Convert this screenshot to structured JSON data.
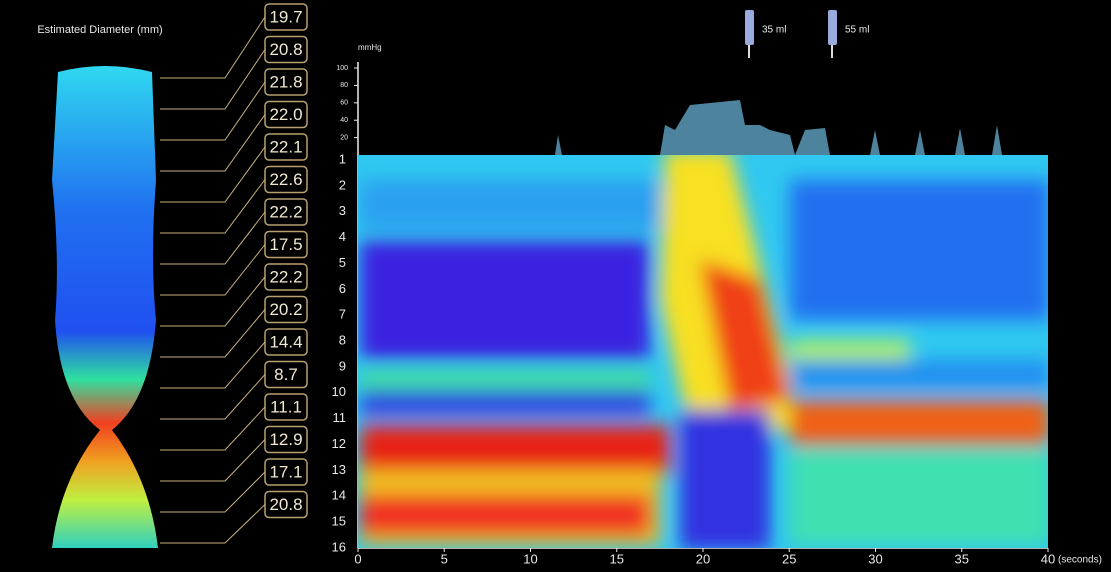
{
  "diameter_panel": {
    "title": "Estimated Diameter (mm)",
    "labels": [
      "19.7",
      "20.8",
      "21.8",
      "22.0",
      "22.1",
      "22.6",
      "22.2",
      "17.5",
      "22.2",
      "20.2",
      "14.4",
      "8.7",
      "11.1",
      "12.9",
      "17.1",
      "20.8"
    ]
  },
  "volumes": [
    "35 ml",
    "55 ml"
  ],
  "pressure_axis": {
    "label": "mmHg",
    "lim": [
      0,
      100
    ],
    "ticks": [
      100,
      80,
      60,
      40,
      20
    ]
  },
  "channels": [
    1,
    2,
    3,
    4,
    5,
    6,
    7,
    8,
    9,
    10,
    11,
    12,
    13,
    14,
    15,
    16
  ],
  "time_axis": {
    "label": "(seconds)",
    "lim": [
      0,
      40
    ],
    "ticks": [
      0,
      5,
      10,
      15,
      20,
      25,
      30,
      35,
      40
    ]
  }
}
